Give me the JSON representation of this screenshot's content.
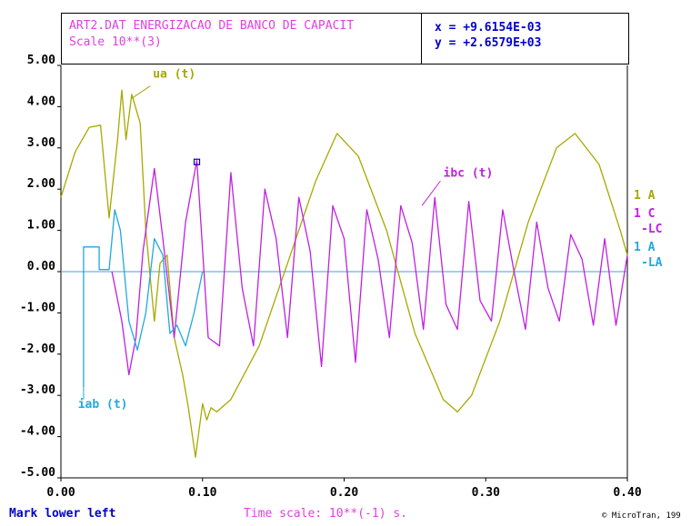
{
  "header": {
    "title": "ART2.DAT ENERGIZACAO DE BANCO DE CAPACIT",
    "scale": "Scale 10**(3)"
  },
  "cursor": {
    "x_readout": "x = +9.6154E-03",
    "y_readout": "y = +2.6579E+03"
  },
  "footer": {
    "mode": "Mark lower left",
    "time_scale": "Time scale: 10**(-1) s.",
    "credit": "© MicroTran, 199"
  },
  "right_labels": {
    "ua_label": "1  A",
    "ibc_label_1": "1  C",
    "ibc_label_2": "-LC",
    "iab_label_1": "1  A",
    "iab_label_2": "-LA"
  },
  "colors": {
    "ua": "#a8a800",
    "ibc": "#c020e0",
    "iab": "#20a8e0",
    "zero_line": "#40a0e0",
    "text_blue": "#0000cc",
    "text_magenta": "#e040e0"
  },
  "chart_data": {
    "type": "line",
    "xlim": [
      0.0,
      0.4
    ],
    "ylim": [
      -5.0,
      5.0
    ],
    "x_ticks": [
      "0.00",
      "0.10",
      "0.20",
      "0.30",
      "0.40"
    ],
    "y_ticks": [
      "5.00",
      "4.00",
      "3.00",
      "2.00",
      "1.00",
      "0.00",
      "-1.00",
      "-2.00",
      "-3.00",
      "-4.00",
      "-5.00"
    ],
    "annotations": {
      "ua": "ua (t)",
      "ibc": "ibc (t)",
      "iab": "iab (t)"
    },
    "marker": {
      "x": 0.096,
      "y": 2.66
    },
    "series": [
      {
        "name": "ua (t)",
        "color": "#a8a800",
        "x": [
          0.0,
          0.01,
          0.02,
          0.028,
          0.034,
          0.04,
          0.043,
          0.046,
          0.05,
          0.056,
          0.06,
          0.066,
          0.07,
          0.075,
          0.08,
          0.086,
          0.09,
          0.095,
          0.1,
          0.103,
          0.106,
          0.11,
          0.12,
          0.14,
          0.16,
          0.18,
          0.195,
          0.21,
          0.23,
          0.25,
          0.27,
          0.28,
          0.29,
          0.31,
          0.33,
          0.35,
          0.363,
          0.38,
          0.395,
          0.4
        ],
        "y": [
          1.8,
          2.9,
          3.5,
          3.55,
          1.3,
          3.2,
          4.4,
          3.2,
          4.3,
          3.6,
          1.0,
          -1.2,
          0.2,
          0.4,
          -1.6,
          -2.5,
          -3.3,
          -4.5,
          -3.2,
          -3.6,
          -3.3,
          -3.4,
          -3.1,
          -1.8,
          0.2,
          2.2,
          3.35,
          2.8,
          1.0,
          -1.5,
          -3.1,
          -3.4,
          -3.0,
          -1.2,
          1.2,
          3.0,
          3.35,
          2.6,
          1.0,
          0.4
        ]
      },
      {
        "name": "ibc (t)",
        "color": "#c020e0",
        "x": [
          0.036,
          0.043,
          0.048,
          0.053,
          0.058,
          0.066,
          0.072,
          0.08,
          0.088,
          0.096,
          0.104,
          0.112,
          0.12,
          0.128,
          0.136,
          0.144,
          0.152,
          0.16,
          0.168,
          0.176,
          0.184,
          0.192,
          0.2,
          0.208,
          0.216,
          0.224,
          0.232,
          0.24,
          0.248,
          0.256,
          0.264,
          0.272,
          0.28,
          0.288,
          0.296,
          0.304,
          0.312,
          0.32,
          0.328,
          0.336,
          0.344,
          0.352,
          0.36,
          0.368,
          0.376,
          0.384,
          0.392,
          0.4
        ],
        "y": [
          0.0,
          -1.2,
          -2.5,
          -1.6,
          0.5,
          2.5,
          0.8,
          -1.6,
          1.2,
          2.7,
          -1.6,
          -1.8,
          2.4,
          -0.4,
          -1.8,
          2.0,
          0.8,
          -1.6,
          1.8,
          0.5,
          -2.3,
          1.6,
          0.8,
          -2.2,
          1.5,
          0.3,
          -1.6,
          1.6,
          0.7,
          -1.4,
          1.8,
          -0.8,
          -1.4,
          1.7,
          -0.7,
          -1.2,
          1.5,
          0.0,
          -1.4,
          1.2,
          -0.4,
          -1.2,
          0.9,
          0.3,
          -1.3,
          0.8,
          -1.3,
          0.4
        ]
      },
      {
        "name": "iab (t)",
        "color": "#20a8e0",
        "x": [
          0.016,
          0.016,
          0.027,
          0.027,
          0.034,
          0.038,
          0.042,
          0.048,
          0.054,
          0.06,
          0.066,
          0.072,
          0.077,
          0.082,
          0.088,
          0.094,
          0.1
        ],
        "y": [
          -2.8,
          0.6,
          0.6,
          0.05,
          0.05,
          1.5,
          1.0,
          -1.2,
          -1.9,
          -1.0,
          0.8,
          0.4,
          -1.5,
          -1.3,
          -1.8,
          -1.0,
          0.0
        ]
      }
    ]
  }
}
